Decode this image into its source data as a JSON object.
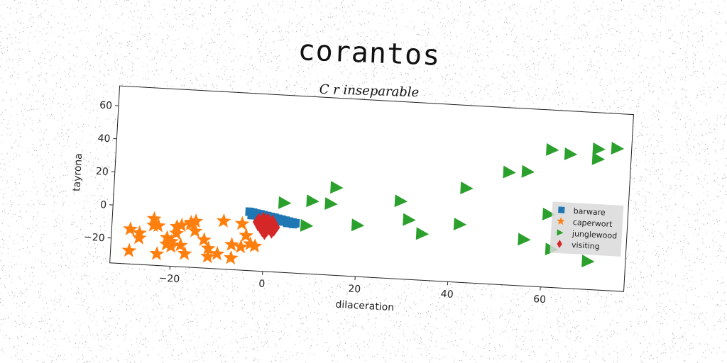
{
  "chart_data": {
    "type": "scatter",
    "title": "corantos",
    "subtitle": "C r inseparable",
    "xlabel": "dilaceration",
    "ylabel": "tayrona",
    "xlim": [
      -33,
      78
    ],
    "ylim": [
      -35,
      72
    ],
    "xticks": [
      -20,
      0,
      20,
      40,
      60
    ],
    "yticks": [
      -20,
      0,
      20,
      40,
      60
    ],
    "grid": false,
    "legend_position": "right",
    "series": [
      {
        "name": "barware",
        "marker": "square",
        "color": "#1f77b4",
        "x": [
          -3.5,
          -2.8,
          -2.0,
          -1.2,
          -0.5,
          0.3,
          1.1,
          1.9,
          2.7,
          3.5,
          4.3,
          5.0,
          5.8,
          6.5,
          -3.0,
          -1.6,
          0.0,
          1.6,
          3.2,
          4.8,
          6.0
        ],
        "y": [
          0.5,
          0.2,
          -0.3,
          -0.6,
          -1.0,
          -1.4,
          -1.8,
          -2.2,
          -2.7,
          -3.1,
          -3.6,
          -4.0,
          -4.4,
          -4.8,
          -1.5,
          -2.0,
          -2.8,
          -3.5,
          -4.3,
          -5.0,
          -5.4
        ]
      },
      {
        "name": "caperwort",
        "marker": "star",
        "color": "#ff7f0e",
        "x": [
          -29,
          -27,
          -24,
          -23,
          -21,
          -20,
          -19,
          -18,
          -16,
          -15,
          -13,
          -12,
          -9,
          -7,
          -5,
          -3,
          -29,
          -27,
          -24,
          -23,
          -20,
          -18,
          -17,
          -15,
          -12,
          -10,
          -7,
          -5,
          -2,
          -19,
          -16,
          -21,
          -4
        ],
        "y": [
          -27,
          -16,
          -7,
          -11,
          -18,
          -20,
          -15,
          -10,
          -8,
          -13,
          -18,
          -28,
          -6,
          -20,
          -7,
          -19,
          -14,
          -19,
          -11,
          -28,
          -23,
          -22,
          -27,
          -7,
          -23,
          -26,
          -28,
          -21,
          -20,
          -11,
          -9,
          -22,
          -14
        ]
      },
      {
        "name": "junglewood",
        "marker": "triangle-right",
        "color": "#2ca02c",
        "x": [
          4,
          9,
          10,
          14,
          15,
          20,
          29,
          31,
          34,
          42,
          43,
          52,
          56,
          56,
          61,
          61,
          62,
          65,
          70,
          71,
          71,
          75
        ],
        "y": [
          7,
          -6,
          9,
          8,
          18,
          -4,
          12,
          1,
          -7,
          0,
          22,
          33,
          34,
          -7,
          48,
          9,
          -12,
          46,
          -18,
          50,
          44,
          51
        ]
      },
      {
        "name": "visiting",
        "marker": "diamond",
        "color": "#d62728",
        "x": [
          -1.5,
          -0.5,
          0.5,
          1.5,
          -1.0,
          0.0,
          1.0,
          2.0,
          -0.5,
          0.5,
          1.5,
          0.0
        ],
        "y": [
          -5.5,
          -4.5,
          -5.0,
          -6.0,
          -7.0,
          -6.5,
          -7.5,
          -8.0,
          -9.0,
          -8.5,
          -9.5,
          -10.5
        ]
      }
    ]
  }
}
